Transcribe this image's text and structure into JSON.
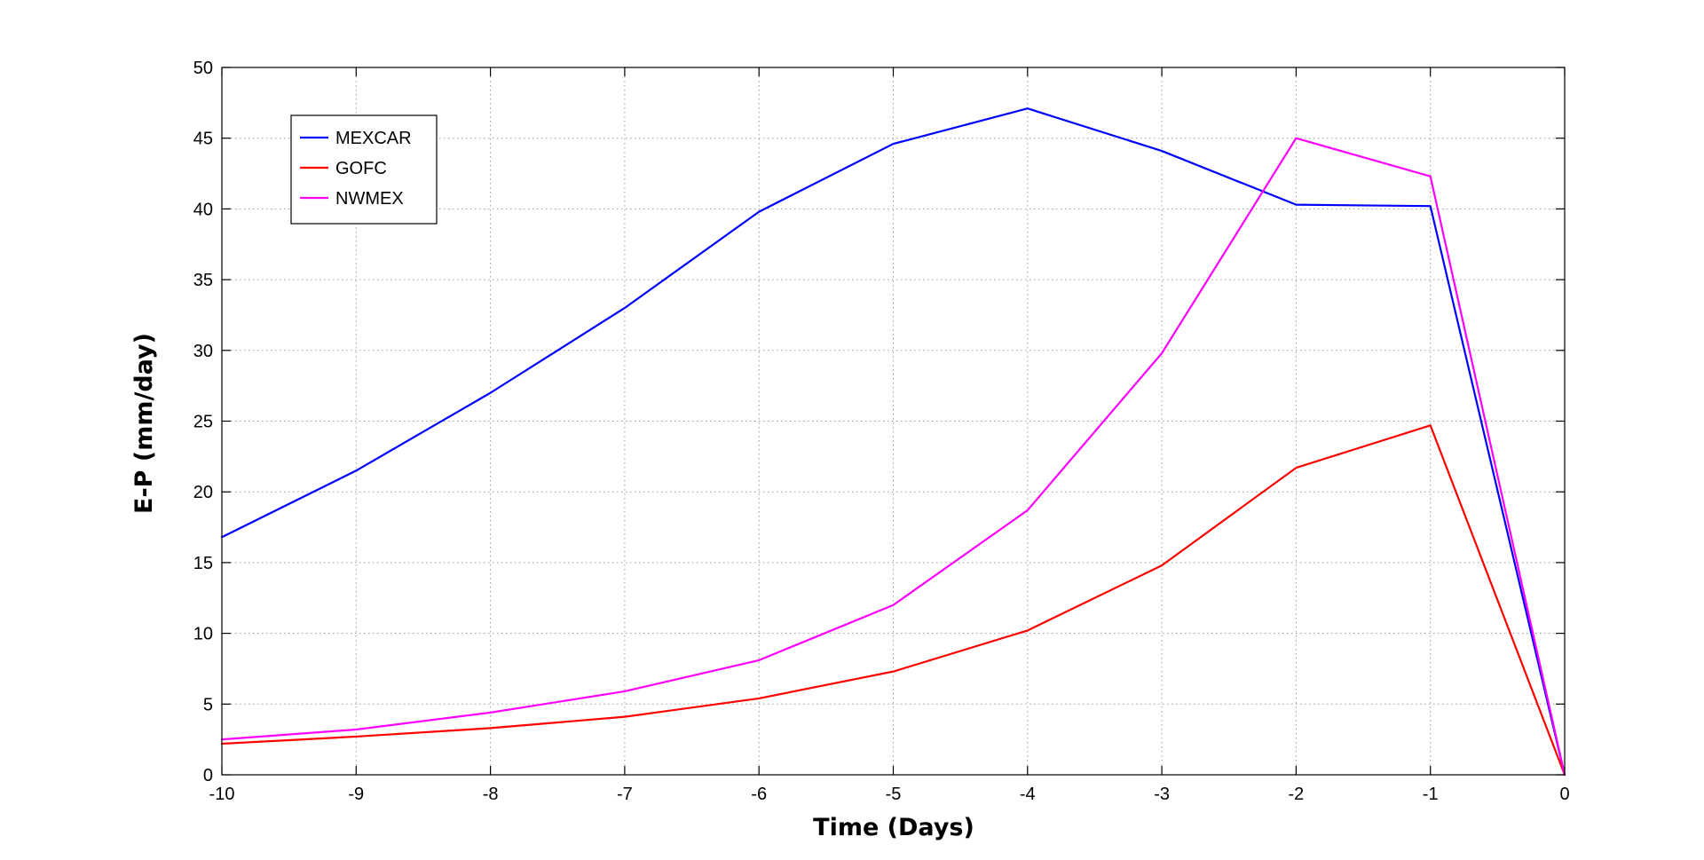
{
  "chart_data": {
    "type": "line",
    "xlabel": "Time (Days)",
    "ylabel": "E-P (mm/day)",
    "xlim": [
      -10,
      0
    ],
    "ylim": [
      0,
      50
    ],
    "x_ticks": [
      -10,
      -9,
      -8,
      -7,
      -6,
      -5,
      -4,
      -3,
      -2,
      -1,
      0
    ],
    "y_ticks": [
      0,
      5,
      10,
      15,
      20,
      25,
      30,
      35,
      40,
      45,
      50
    ],
    "grid": true,
    "legend_position": "top-left",
    "x": [
      -10,
      -9,
      -8,
      -7,
      -6,
      -5,
      -4,
      -3,
      -2,
      -1,
      0
    ],
    "series": [
      {
        "name": "MEXCAR",
        "color": "#0000ff",
        "values": [
          16.8,
          21.5,
          27.0,
          33.0,
          39.8,
          44.6,
          47.1,
          44.1,
          40.3,
          40.2,
          0
        ]
      },
      {
        "name": "GOFC",
        "color": "#ff0000",
        "values": [
          2.2,
          2.7,
          3.3,
          4.1,
          5.4,
          7.3,
          10.2,
          14.8,
          21.7,
          24.7,
          0
        ]
      },
      {
        "name": "NWMEX",
        "color": "#ff00ff",
        "values": [
          2.5,
          3.2,
          4.4,
          5.9,
          8.1,
          12.0,
          18.7,
          29.8,
          45.0,
          42.3,
          0
        ]
      }
    ]
  }
}
